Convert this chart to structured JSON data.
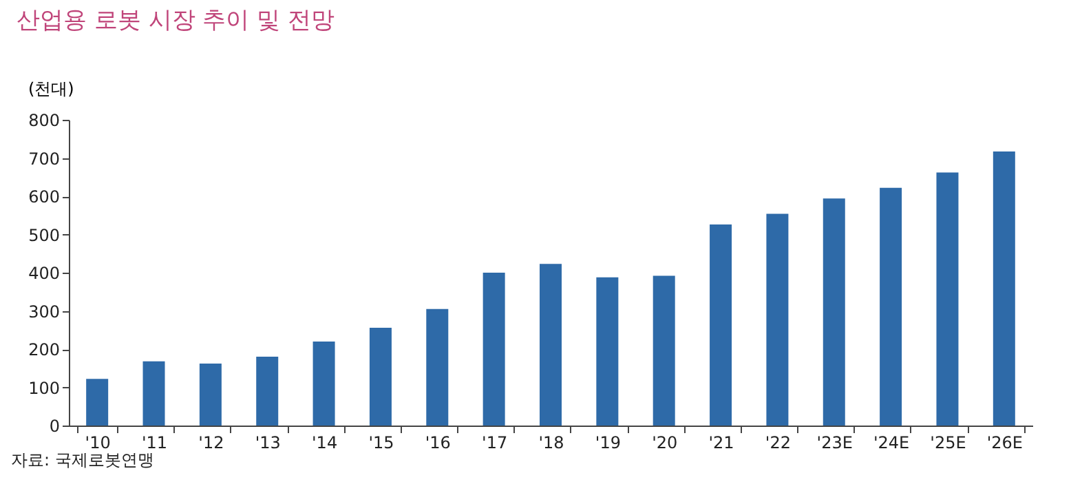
{
  "chart_data": {
    "type": "bar",
    "title": "산업용 로봇 시장 추이 및 전망",
    "ylabel": "(천대)",
    "categories": [
      "'10",
      "'11",
      "'12",
      "'13",
      "'14",
      "'15",
      "'16",
      "'17",
      "'18",
      "'19",
      "'20",
      "'21",
      "'22",
      "'23E",
      "'24E",
      "'25E",
      "'26E"
    ],
    "values": [
      122,
      168,
      162,
      180,
      220,
      256,
      305,
      400,
      423,
      388,
      392,
      526,
      554,
      594,
      622,
      662,
      717
    ],
    "color": "#2e6aa8",
    "ylim": [
      0,
      800
    ],
    "yticks": [
      0,
      100,
      200,
      300,
      400,
      500,
      600,
      700,
      800
    ],
    "grid": false,
    "annotations": [
      "자료: 국제로봇연맹"
    ]
  }
}
